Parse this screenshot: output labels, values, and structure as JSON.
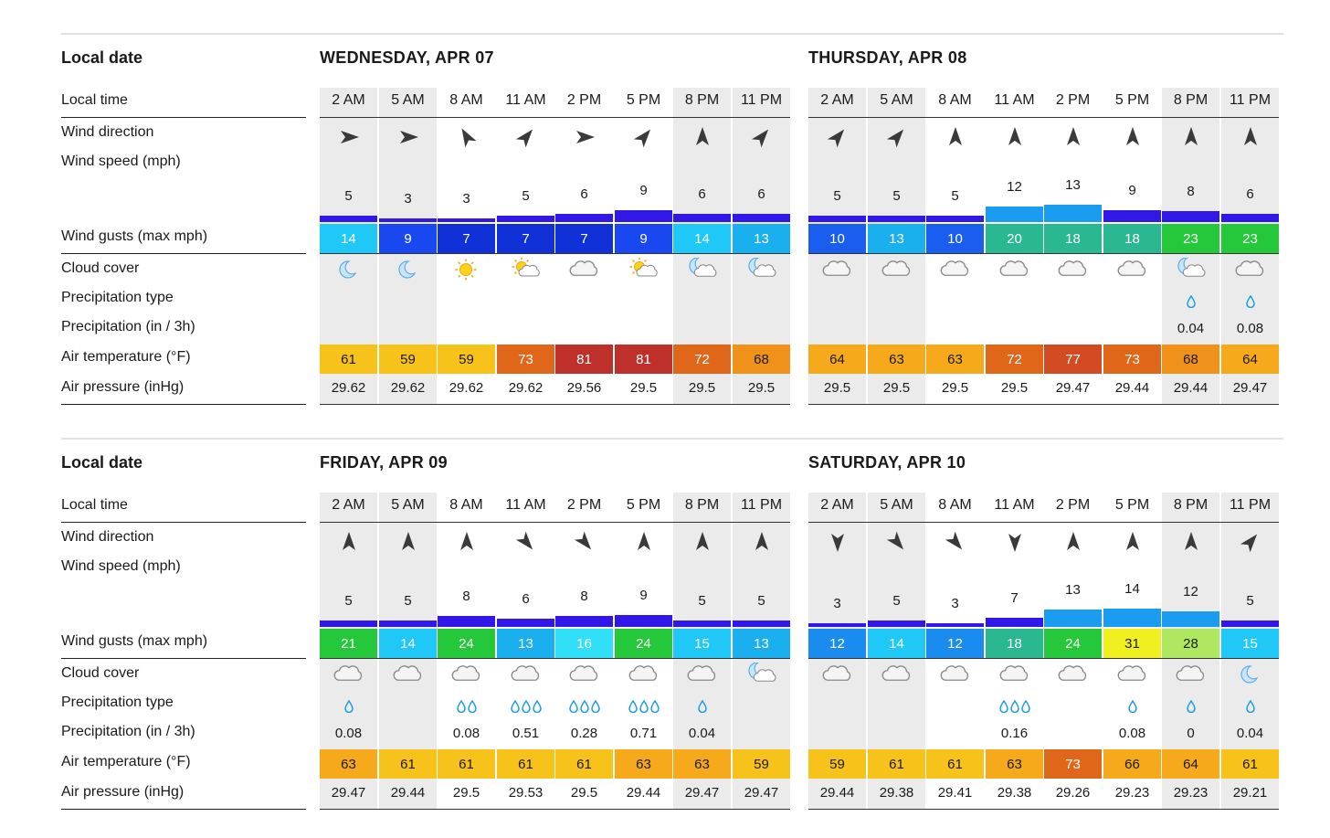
{
  "labels": {
    "local_date": "Local date",
    "local_time": "Local time",
    "wind_direction": "Wind direction",
    "wind_speed": "Wind speed  (mph)",
    "wind_gusts": "Wind gusts  (max mph)",
    "cloud_cover": "Cloud cover",
    "precip_type": "Precipitation type",
    "precipitation": "Precipitation  (in / 3h)",
    "air_temp": "Air temperature  (°F)",
    "air_pressure": "Air pressure  (inHg)"
  },
  "legend_scale": {
    "gust_colors": [
      "#1030d8",
      "#1a5ef0",
      "#1a8cf0",
      "#1ab4f0",
      "#20d8f8",
      "#2ab890",
      "#25c83a",
      "#aee860",
      "#f0f020"
    ],
    "temp_colors": [
      "#f7c21a",
      "#f6a91a",
      "#f68f1a",
      "#e0661a",
      "#d44a22",
      "#c0302a"
    ],
    "wind_bar_color": "#3218e8"
  },
  "days": [
    {
      "title": "WEDNESDAY, APR 07",
      "hours": [
        {
          "time": "2 AM",
          "dir": "right",
          "night": true,
          "speed": "5",
          "gust": "14",
          "gust_color": "#20c8f8",
          "cloud": "moon",
          "drops": 0,
          "amount": "",
          "temp": "61",
          "temp_color": "#f7c21a",
          "pressure": "29.62"
        },
        {
          "time": "5 AM",
          "dir": "right",
          "night": true,
          "speed": "3",
          "gust": "9",
          "gust_color": "#1a48f0",
          "cloud": "moon",
          "drops": 0,
          "amount": "",
          "temp": "59",
          "temp_color": "#f7c21a",
          "pressure": "29.62"
        },
        {
          "time": "8 AM",
          "dir": "upleft",
          "night": false,
          "speed": "3",
          "gust": "7",
          "gust_color": "#1030d8",
          "cloud": "sun",
          "drops": 0,
          "amount": "",
          "temp": "59",
          "temp_color": "#f7c21a",
          "pressure": "29.62"
        },
        {
          "time": "11 AM",
          "dir": "upright",
          "night": false,
          "speed": "5",
          "gust": "7",
          "gust_color": "#1030d8",
          "cloud": "sun-cloud",
          "drops": 0,
          "amount": "",
          "temp": "73",
          "temp_color": "#e0661a",
          "pressure": "29.62"
        },
        {
          "time": "2 PM",
          "dir": "right",
          "night": false,
          "speed": "6",
          "gust": "7",
          "gust_color": "#1030d8",
          "cloud": "cloud",
          "drops": 0,
          "amount": "",
          "temp": "81",
          "temp_color": "#c0302a",
          "pressure": "29.56"
        },
        {
          "time": "5 PM",
          "dir": "upright",
          "night": false,
          "speed": "9",
          "gust": "9",
          "gust_color": "#1a48f0",
          "cloud": "sun-cloud",
          "drops": 0,
          "amount": "",
          "temp": "81",
          "temp_color": "#c0302a",
          "pressure": "29.5"
        },
        {
          "time": "8 PM",
          "dir": "up",
          "night": true,
          "speed": "6",
          "gust": "14",
          "gust_color": "#20c8f8",
          "cloud": "moon-cloud",
          "drops": 0,
          "amount": "",
          "temp": "72",
          "temp_color": "#e0661a",
          "pressure": "29.5"
        },
        {
          "time": "11 PM",
          "dir": "upright",
          "night": true,
          "speed": "6",
          "gust": "13",
          "gust_color": "#1ab0f0",
          "cloud": "moon-cloud",
          "drops": 0,
          "amount": "",
          "temp": "68",
          "temp_color": "#f0921a",
          "pressure": "29.5"
        }
      ]
    },
    {
      "title": "THURSDAY, APR 08",
      "hours": [
        {
          "time": "2 AM",
          "dir": "upright",
          "night": true,
          "speed": "5",
          "gust": "10",
          "gust_color": "#1a5ef0",
          "cloud": "cloud",
          "drops": 0,
          "amount": "",
          "temp": "64",
          "temp_color": "#f6a91a",
          "pressure": "29.5"
        },
        {
          "time": "5 AM",
          "dir": "upright",
          "night": true,
          "speed": "5",
          "gust": "13",
          "gust_color": "#1ab0f0",
          "cloud": "cloud",
          "drops": 0,
          "amount": "",
          "temp": "63",
          "temp_color": "#f6a91a",
          "pressure": "29.5"
        },
        {
          "time": "8 AM",
          "dir": "up",
          "night": false,
          "speed": "5",
          "gust": "10",
          "gust_color": "#1a5ef0",
          "cloud": "cloud",
          "drops": 0,
          "amount": "",
          "temp": "63",
          "temp_color": "#f6a91a",
          "pressure": "29.5"
        },
        {
          "time": "11 AM",
          "dir": "up",
          "night": false,
          "speed": "12",
          "gust": "20",
          "gust_color": "#2ab890",
          "cloud": "cloud",
          "drops": 0,
          "amount": "",
          "temp": "72",
          "temp_color": "#e0661a",
          "pressure": "29.5"
        },
        {
          "time": "2 PM",
          "dir": "up",
          "night": false,
          "speed": "13",
          "gust": "18",
          "gust_color": "#2ab890",
          "cloud": "cloud",
          "drops": 0,
          "amount": "",
          "temp": "77",
          "temp_color": "#d44a22",
          "pressure": "29.47"
        },
        {
          "time": "5 PM",
          "dir": "up",
          "night": false,
          "speed": "9",
          "gust": "18",
          "gust_color": "#2ab890",
          "cloud": "cloud",
          "drops": 0,
          "amount": "",
          "temp": "73",
          "temp_color": "#e0661a",
          "pressure": "29.44"
        },
        {
          "time": "8 PM",
          "dir": "up",
          "night": true,
          "speed": "8",
          "gust": "23",
          "gust_color": "#25c83a",
          "cloud": "moon-cloud",
          "drops": 1,
          "amount": "0.04",
          "temp": "68",
          "temp_color": "#f0921a",
          "pressure": "29.44"
        },
        {
          "time": "11 PM",
          "dir": "up",
          "night": true,
          "speed": "6",
          "gust": "23",
          "gust_color": "#25c83a",
          "cloud": "cloud",
          "drops": 1,
          "amount": "0.08",
          "temp": "64",
          "temp_color": "#f6a91a",
          "pressure": "29.47"
        }
      ]
    },
    {
      "title": "FRIDAY, APR 09",
      "hours": [
        {
          "time": "2 AM",
          "dir": "up",
          "night": true,
          "speed": "5",
          "gust": "21",
          "gust_color": "#25c83a",
          "cloud": "cloud",
          "drops": 1,
          "amount": "0.08",
          "temp": "63",
          "temp_color": "#f6a91a",
          "pressure": "29.47"
        },
        {
          "time": "5 AM",
          "dir": "up",
          "night": true,
          "speed": "5",
          "gust": "14",
          "gust_color": "#20c8f8",
          "cloud": "cloud",
          "drops": 0,
          "amount": "",
          "temp": "61",
          "temp_color": "#f7c21a",
          "pressure": "29.44"
        },
        {
          "time": "8 AM",
          "dir": "up",
          "night": false,
          "speed": "8",
          "gust": "24",
          "gust_color": "#25c83a",
          "cloud": "cloud",
          "drops": 2,
          "amount": "0.08",
          "temp": "61",
          "temp_color": "#f7c21a",
          "pressure": "29.5"
        },
        {
          "time": "11 AM",
          "dir": "downright",
          "night": false,
          "speed": "6",
          "gust": "13",
          "gust_color": "#1ab0f0",
          "cloud": "cloud",
          "drops": 3,
          "amount": "0.51",
          "temp": "61",
          "temp_color": "#f7c21a",
          "pressure": "29.53"
        },
        {
          "time": "2 PM",
          "dir": "downright",
          "night": false,
          "speed": "8",
          "gust": "16",
          "gust_color": "#30e0f8",
          "cloud": "cloud",
          "drops": 3,
          "amount": "0.28",
          "temp": "61",
          "temp_color": "#f7c21a",
          "pressure": "29.5"
        },
        {
          "time": "5 PM",
          "dir": "up",
          "night": false,
          "speed": "9",
          "gust": "24",
          "gust_color": "#25c83a",
          "cloud": "cloud",
          "drops": 3,
          "amount": "0.71",
          "temp": "63",
          "temp_color": "#f6a91a",
          "pressure": "29.44"
        },
        {
          "time": "8 PM",
          "dir": "up",
          "night": true,
          "speed": "5",
          "gust": "15",
          "gust_color": "#20c8f8",
          "cloud": "cloud",
          "drops": 1,
          "amount": "0.04",
          "temp": "63",
          "temp_color": "#f6a91a",
          "pressure": "29.47"
        },
        {
          "time": "11 PM",
          "dir": "up",
          "night": true,
          "speed": "5",
          "gust": "13",
          "gust_color": "#1ab0f0",
          "cloud": "moon-cloud",
          "drops": 0,
          "amount": "",
          "temp": "59",
          "temp_color": "#f7c21a",
          "pressure": "29.47"
        }
      ]
    },
    {
      "title": "SATURDAY, APR 10",
      "hours": [
        {
          "time": "2 AM",
          "dir": "down",
          "night": true,
          "speed": "3",
          "gust": "12",
          "gust_color": "#1a8cf0",
          "cloud": "cloud",
          "drops": 0,
          "amount": "",
          "temp": "59",
          "temp_color": "#f7c21a",
          "pressure": "29.44"
        },
        {
          "time": "5 AM",
          "dir": "downright",
          "night": true,
          "speed": "5",
          "gust": "14",
          "gust_color": "#20c8f8",
          "cloud": "cloud",
          "drops": 0,
          "amount": "",
          "temp": "61",
          "temp_color": "#f7c21a",
          "pressure": "29.38"
        },
        {
          "time": "8 AM",
          "dir": "downright",
          "night": false,
          "speed": "3",
          "gust": "12",
          "gust_color": "#1a8cf0",
          "cloud": "cloud",
          "drops": 0,
          "amount": "",
          "temp": "61",
          "temp_color": "#f7c21a",
          "pressure": "29.41"
        },
        {
          "time": "11 AM",
          "dir": "down",
          "night": false,
          "speed": "7",
          "gust": "18",
          "gust_color": "#2ab890",
          "cloud": "cloud",
          "drops": 3,
          "amount": "0.16",
          "temp": "63",
          "temp_color": "#f6a91a",
          "pressure": "29.38"
        },
        {
          "time": "2 PM",
          "dir": "up",
          "night": false,
          "speed": "13",
          "gust": "24",
          "gust_color": "#25c83a",
          "cloud": "cloud",
          "drops": 0,
          "amount": "",
          "temp": "73",
          "temp_color": "#e0661a",
          "pressure": "29.26"
        },
        {
          "time": "5 PM",
          "dir": "up",
          "night": false,
          "speed": "14",
          "gust": "31",
          "gust_color": "#f0f020",
          "cloud": "cloud",
          "drops": 1,
          "amount": "0.08",
          "temp": "66",
          "temp_color": "#f6a91a",
          "pressure": "29.23"
        },
        {
          "time": "8 PM",
          "dir": "up",
          "night": true,
          "speed": "12",
          "gust": "28",
          "gust_color": "#aee860",
          "cloud": "cloud",
          "drops": 1,
          "amount": "0",
          "temp": "64",
          "temp_color": "#f6a91a",
          "pressure": "29.23"
        },
        {
          "time": "11 PM",
          "dir": "upright",
          "night": true,
          "speed": "5",
          "gust": "15",
          "gust_color": "#20c8f8",
          "cloud": "moon",
          "drops": 1,
          "amount": "0.04",
          "temp": "61",
          "temp_color": "#f7c21a",
          "pressure": "29.21"
        }
      ]
    }
  ]
}
